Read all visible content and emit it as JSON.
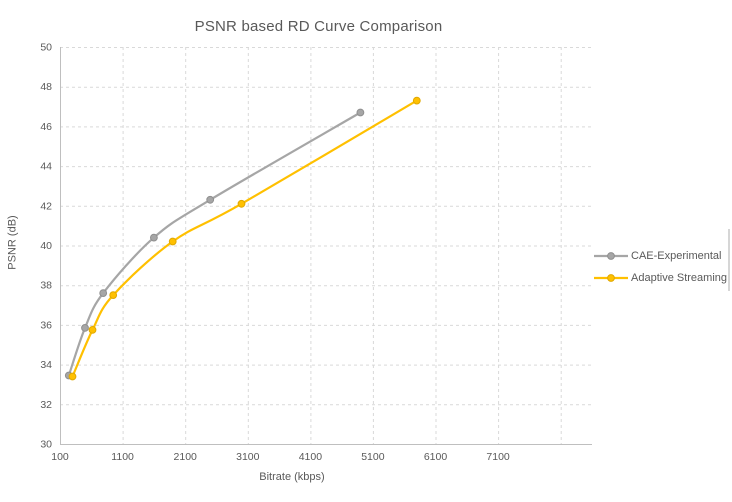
{
  "window": {
    "background": "#ffffff"
  },
  "chart_data": {
    "type": "line",
    "title": "PSNR based RD Curve Comparison",
    "xlabel": "Bitrate (kbps)",
    "ylabel": "PSNR (dB)",
    "xlim": [
      100,
      8600
    ],
    "ylim": [
      30,
      50
    ],
    "x_ticks": [
      100,
      1100,
      2100,
      3100,
      4100,
      5100,
      6100,
      7100
    ],
    "x_unlabeled_gridlines": [
      8100
    ],
    "y_ticks": [
      30,
      32,
      34,
      36,
      38,
      40,
      42,
      44,
      46,
      48,
      50
    ],
    "grid": true,
    "gridline_style": "dashed",
    "smooth_lines": true,
    "marker": "circle",
    "legend_position": "right",
    "axis_color": "#bfbfbf",
    "grid_color": "#d9d9d9",
    "text_color": "#595959",
    "series": [
      {
        "name": "CAE-Experimental",
        "color": "#a6a6a6",
        "marker_stroke": "#8f8f8f",
        "points": [
          [
            240,
            33.45
          ],
          [
            500,
            35.85
          ],
          [
            790,
            37.6
          ],
          [
            1600,
            40.4
          ],
          [
            2500,
            42.3
          ],
          [
            4900,
            46.7
          ]
        ]
      },
      {
        "name": "Adaptive Streaming",
        "color": "#ffc000",
        "marker_stroke": "#e0a800",
        "points": [
          [
            300,
            33.4
          ],
          [
            620,
            35.75
          ],
          [
            950,
            37.5
          ],
          [
            1900,
            40.2
          ],
          [
            3000,
            42.1
          ],
          [
            5800,
            47.3
          ]
        ]
      }
    ]
  }
}
